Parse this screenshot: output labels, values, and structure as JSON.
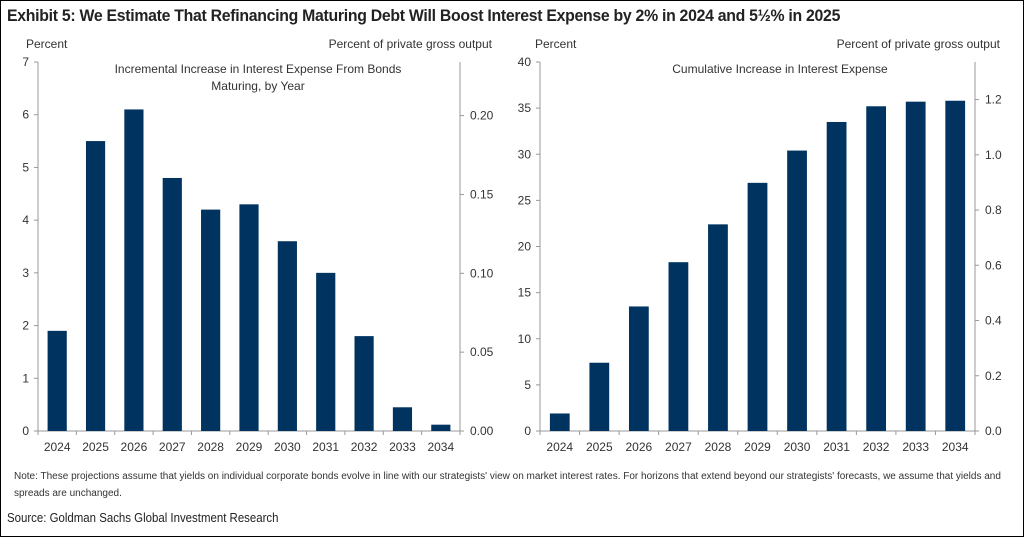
{
  "header": {
    "title": "Exhibit 5: We Estimate That Refinancing Maturing Debt Will Boost Interest Expense by 2% in 2024 and 5½% in 2025"
  },
  "chart_data": [
    {
      "type": "bar",
      "title": "Incremental Increase in Interest Expense From Bonds Maturing, by Year",
      "title_lines": [
        "Incremental Increase in Interest Expense From Bonds",
        "Maturing, by Year"
      ],
      "ylabel": "Percent",
      "y2label": "Percent of private gross output",
      "categories": [
        "2024",
        "2025",
        "2026",
        "2027",
        "2028",
        "2029",
        "2030",
        "2031",
        "2032",
        "2033",
        "2034"
      ],
      "values": [
        1.9,
        5.5,
        6.1,
        4.8,
        4.2,
        4.3,
        3.6,
        3.0,
        1.8,
        0.45,
        0.12
      ],
      "ylim": [
        0,
        7
      ],
      "yticks": [
        0,
        1,
        2,
        3,
        4,
        5,
        6,
        7
      ],
      "ytick_labels": [
        "0",
        "1",
        "2",
        "3",
        "4",
        "5",
        "6",
        "7"
      ],
      "y2lim": [
        0,
        0.234
      ],
      "y2ticks": [
        0,
        0.05,
        0.1,
        0.15,
        0.2
      ],
      "y2tick_labels": [
        "0.00",
        "0.05",
        "0.10",
        "0.15",
        "0.20"
      ],
      "color": "#003360",
      "grid": false,
      "legend": "none"
    },
    {
      "type": "bar",
      "title": "Cumulative Increase in Interest Expense",
      "title_lines": [
        "Cumulative Increase in Interest Expense"
      ],
      "ylabel": "Percent",
      "y2label": "Percent of private gross output",
      "categories": [
        "2024",
        "2025",
        "2026",
        "2027",
        "2028",
        "2029",
        "2030",
        "2031",
        "2032",
        "2033",
        "2034"
      ],
      "values": [
        1.9,
        7.4,
        13.5,
        18.3,
        22.4,
        26.9,
        30.4,
        33.5,
        35.2,
        35.7,
        35.8
      ],
      "ylim": [
        0,
        40
      ],
      "yticks": [
        0,
        5,
        10,
        15,
        20,
        25,
        30,
        35,
        40
      ],
      "ytick_labels": [
        "0",
        "5",
        "10",
        "15",
        "20",
        "25",
        "30",
        "35",
        "40"
      ],
      "y2lim": [
        0,
        1.336
      ],
      "y2ticks": [
        0,
        0.2,
        0.4,
        0.6,
        0.8,
        1.0,
        1.2
      ],
      "y2tick_labels": [
        "0.0",
        "0.2",
        "0.4",
        "0.6",
        "0.8",
        "1.0",
        "1.2"
      ],
      "color": "#003360",
      "grid": false,
      "legend": "none"
    }
  ],
  "footer": {
    "note": "Note: These projections assume that yields on individual corporate bonds evolve in line with our strategists' view on market interest rates. For horizons that extend beyond our strategists' forecasts, we assume that yields and spreads are unchanged.",
    "source": "Source: Goldman Sachs Global Investment Research"
  }
}
